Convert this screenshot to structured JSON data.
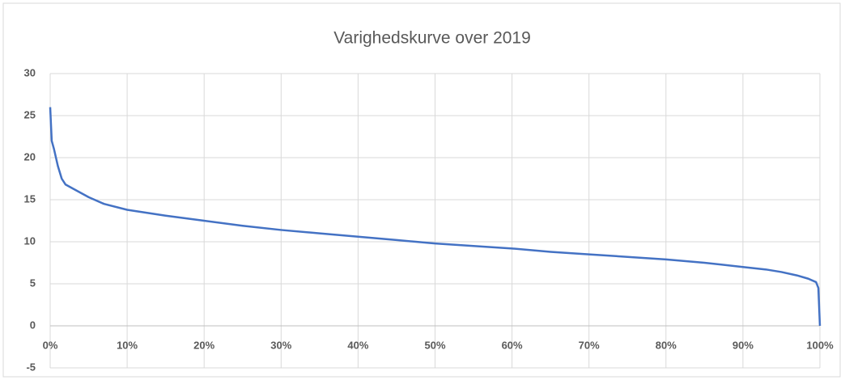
{
  "chart_data": {
    "type": "line",
    "title": "Varighedskurve over 2019",
    "x": [
      0,
      0.2,
      0.5,
      1,
      1.5,
      2,
      3,
      5,
      7,
      10,
      15,
      20,
      25,
      30,
      35,
      40,
      45,
      50,
      55,
      60,
      65,
      70,
      75,
      80,
      85,
      90,
      93,
      95,
      97,
      98.5,
      99.5,
      99.8,
      100
    ],
    "series": [
      {
        "color": "#4472c4",
        "values": [
          26,
          22,
          21,
          19,
          17.5,
          16.8,
          16.3,
          15.3,
          14.5,
          13.8,
          13.1,
          12.5,
          11.9,
          11.4,
          11,
          10.6,
          10.2,
          9.8,
          9.5,
          9.2,
          8.8,
          8.5,
          8.2,
          7.9,
          7.5,
          7,
          6.7,
          6.4,
          6,
          5.6,
          5.2,
          4.5,
          0
        ]
      }
    ],
    "xlim": [
      0,
      100
    ],
    "xticks": [
      {
        "value": 0,
        "label": "0%"
      },
      {
        "value": 10,
        "label": "10%"
      },
      {
        "value": 20,
        "label": "20%"
      },
      {
        "value": 30,
        "label": "30%"
      },
      {
        "value": 40,
        "label": "40%"
      },
      {
        "value": 50,
        "label": "50%"
      },
      {
        "value": 60,
        "label": "60%"
      },
      {
        "value": 70,
        "label": "70%"
      },
      {
        "value": 80,
        "label": "80%"
      },
      {
        "value": 90,
        "label": "90%"
      },
      {
        "value": 100,
        "label": "100%"
      }
    ],
    "ylim": [
      -5,
      30
    ],
    "yticks": [
      -5,
      0,
      5,
      10,
      15,
      20,
      25,
      30
    ],
    "grid": true
  }
}
